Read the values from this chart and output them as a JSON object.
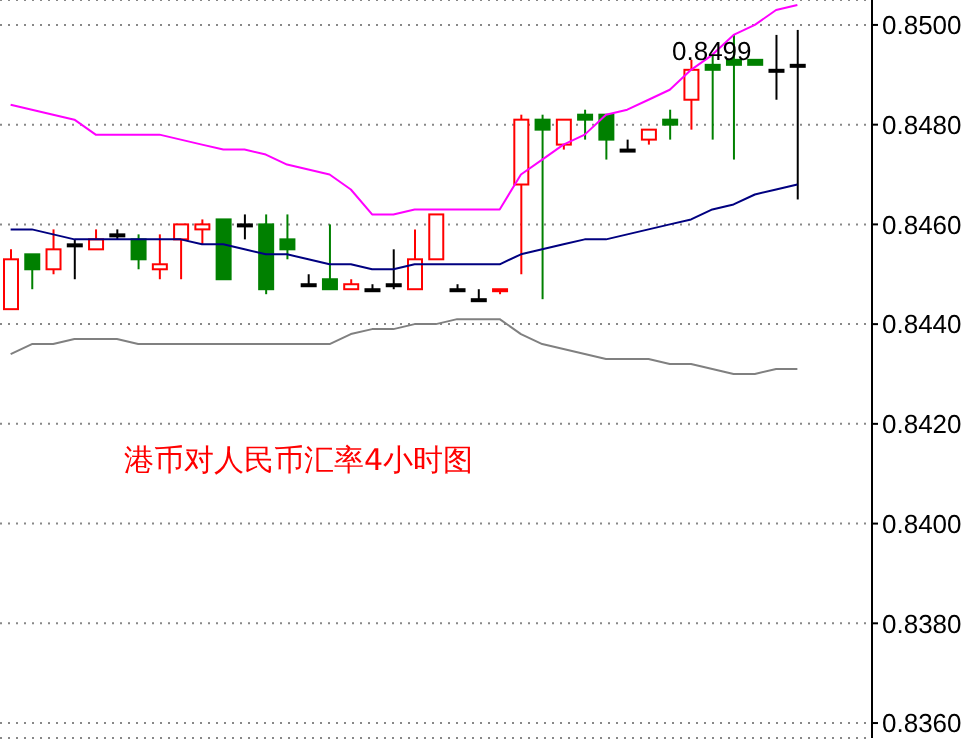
{
  "chart_data": {
    "type": "candlestick",
    "title": "港币对人民币汇率4小时图",
    "categories": [
      null,
      null,
      null,
      null,
      null,
      null,
      null,
      null,
      null,
      null,
      null,
      null,
      null,
      null,
      null,
      null,
      null,
      null,
      null,
      null,
      null,
      null,
      null,
      null,
      null,
      null,
      null,
      null,
      null,
      null,
      null,
      null,
      null,
      null,
      null,
      null,
      null,
      null
    ],
    "ohlc": [
      [
        0.8443,
        0.8455,
        0.8443,
        0.8453
      ],
      [
        0.8454,
        0.8454,
        0.8447,
        0.8451
      ],
      [
        0.8451,
        0.8459,
        0.845,
        0.8455
      ],
      [
        0.8456,
        0.8457,
        0.8449,
        0.8456
      ],
      [
        0.8455,
        0.8459,
        0.8455,
        0.8457
      ],
      [
        0.8458,
        0.8459,
        0.8457,
        0.8458
      ],
      [
        0.8457,
        0.8458,
        0.8451,
        0.8453
      ],
      [
        0.8451,
        0.8458,
        0.8449,
        0.8452
      ],
      [
        0.8457,
        0.846,
        0.8449,
        0.846
      ],
      [
        0.8459,
        0.8461,
        0.8456,
        0.846
      ],
      [
        0.8461,
        0.8461,
        0.8449,
        0.8449
      ],
      [
        0.846,
        0.8462,
        0.8457,
        0.846
      ],
      [
        0.846,
        0.8462,
        0.8446,
        0.8447
      ],
      [
        0.8457,
        0.8462,
        0.8453,
        0.8455
      ],
      [
        0.8448,
        0.845,
        0.8448,
        0.8448
      ],
      [
        0.8449,
        0.846,
        0.8447,
        0.8447
      ],
      [
        0.8447,
        0.8449,
        0.8447,
        0.8448
      ],
      [
        0.8447,
        0.8448,
        0.8447,
        0.8447
      ],
      [
        0.8448,
        0.8455,
        0.8447,
        0.8448
      ],
      [
        0.8447,
        0.8459,
        0.8447,
        0.8453
      ],
      [
        0.8453,
        0.8462,
        0.8453,
        0.8462
      ],
      [
        0.8447,
        0.8448,
        0.8447,
        0.8447
      ],
      [
        0.8445,
        0.8447,
        0.8445,
        0.8445
      ],
      [
        0.8447,
        0.8447,
        0.8446,
        0.8447
      ],
      [
        0.8468,
        0.8482,
        0.845,
        0.8481
      ],
      [
        0.8481,
        0.8482,
        0.8445,
        0.8479
      ],
      [
        0.8476,
        0.8481,
        0.8475,
        0.8481
      ],
      [
        0.8482,
        0.8483,
        0.8477,
        0.8481
      ],
      [
        0.8482,
        0.8482,
        0.8473,
        0.8477
      ],
      [
        0.8475,
        0.8477,
        0.8475,
        0.8475
      ],
      [
        0.8477,
        0.8479,
        0.8476,
        0.8479
      ],
      [
        0.8481,
        0.8483,
        0.8477,
        0.848
      ],
      [
        0.8485,
        0.8493,
        0.8479,
        0.8491
      ],
      [
        0.8492,
        0.8494,
        0.8477,
        0.8491
      ],
      [
        0.8493,
        0.8498,
        0.8473,
        0.8492
      ],
      [
        0.8493,
        0.8493,
        0.8492,
        0.8492
      ],
      [
        0.8491,
        0.8498,
        0.8485,
        0.8491
      ],
      [
        0.8492,
        0.8499,
        0.8465,
        0.8492
      ]
    ],
    "colors": [
      "#ff0000",
      "#008000",
      "#ff0000",
      "#000000",
      "#ff0000",
      "#000000",
      "#008000",
      "#ff0000",
      "#ff0000",
      "#ff0000",
      "#008000",
      "#000000",
      "#008000",
      "#008000",
      "#000000",
      "#008000",
      "#ff0000",
      "#000000",
      "#000000",
      "#ff0000",
      "#ff0000",
      "#000000",
      "#000000",
      "#ff0000",
      "#ff0000",
      "#008000",
      "#ff0000",
      "#008000",
      "#008000",
      "#000000",
      "#ff0000",
      "#008000",
      "#ff0000",
      "#008000",
      "#008000",
      "#008000",
      "#000000",
      "#000000"
    ],
    "series": [
      {
        "type": "line",
        "color": "#ff00ff",
        "values": [
          0.8484,
          0.8483,
          0.8482,
          0.8481,
          0.8478,
          0.8478,
          0.8478,
          0.8478,
          0.8477,
          0.8476,
          0.8475,
          0.8475,
          0.8474,
          0.8472,
          0.8471,
          0.847,
          0.8467,
          0.8462,
          0.8462,
          0.8463,
          0.8463,
          0.8463,
          0.8463,
          0.8463,
          0.847,
          0.8473,
          0.8476,
          0.8478,
          0.8482,
          0.8483,
          0.8485,
          0.8487,
          0.8491,
          0.8494,
          0.8498,
          0.85,
          0.8503,
          0.8504
        ]
      },
      {
        "type": "line",
        "color": "#000080",
        "values": [
          0.8459,
          0.8459,
          0.8458,
          0.8457,
          0.8457,
          0.8457,
          0.8457,
          0.8457,
          0.8457,
          0.8456,
          0.8456,
          0.8455,
          0.8454,
          0.8454,
          0.8453,
          0.8452,
          0.8452,
          0.8451,
          0.8451,
          0.8452,
          0.8452,
          0.8452,
          0.8452,
          0.8452,
          0.8454,
          0.8455,
          0.8456,
          0.8457,
          0.8457,
          0.8458,
          0.8459,
          0.846,
          0.8461,
          0.8463,
          0.8464,
          0.8466,
          0.8467,
          0.8468
        ]
      },
      {
        "type": "line",
        "color": "#808080",
        "values": [
          0.8434,
          0.8436,
          0.8436,
          0.8437,
          0.8437,
          0.8437,
          0.8436,
          0.8436,
          0.8436,
          0.8436,
          0.8436,
          0.8436,
          0.8436,
          0.8436,
          0.8436,
          0.8436,
          0.8438,
          0.8439,
          0.8439,
          0.844,
          0.844,
          0.8441,
          0.8441,
          0.8441,
          0.8438,
          0.8436,
          0.8435,
          0.8434,
          0.8433,
          0.8433,
          0.8433,
          0.8432,
          0.8432,
          0.8431,
          0.843,
          0.843,
          0.8431,
          0.8431
        ]
      }
    ],
    "annotations": [
      "0.8499"
    ],
    "ylim": [
      0.8357,
      0.8505
    ],
    "yticks": [
      {
        "value": 0.836,
        "label": "0.8360"
      },
      {
        "value": 0.838,
        "label": "0.8380"
      },
      {
        "value": 0.84,
        "label": "0.8400"
      },
      {
        "value": 0.842,
        "label": "0.8420"
      },
      {
        "value": 0.844,
        "label": "0.8440"
      },
      {
        "value": 0.846,
        "label": "0.8460"
      },
      {
        "value": 0.848,
        "label": "0.8480"
      },
      {
        "value": 0.85,
        "label": "0.8500"
      }
    ],
    "grid": "y",
    "tick_labels": "y"
  }
}
